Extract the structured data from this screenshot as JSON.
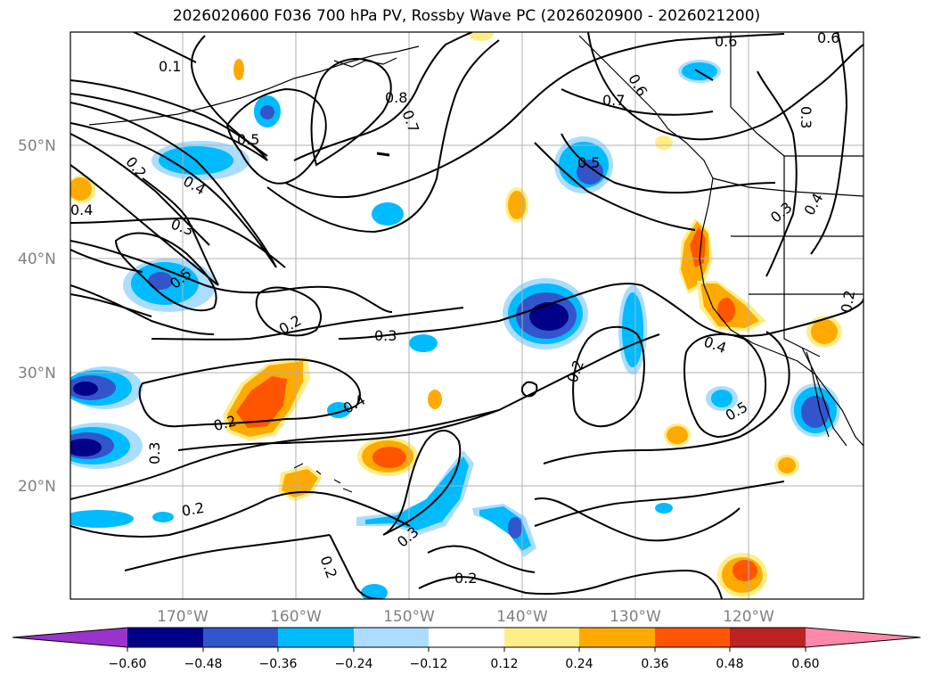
{
  "title": "2026020600 F036 700 hPa PV, Rossby Wave PC (2026020900 - 2026021200)",
  "lat_labels": [
    "50°N",
    "40°N",
    "30°N",
    "20°N"
  ],
  "lon_labels": [
    "170°W",
    "160°W",
    "150°W",
    "140°W",
    "130°W",
    "120°W"
  ],
  "colorbar": {
    "tick_labels": [
      "−0.60",
      "−0.48",
      "−0.36",
      "−0.24",
      "−0.12",
      "0.12",
      "0.24",
      "0.36",
      "0.48",
      "0.60"
    ],
    "colors": [
      "#9933cc",
      "#000088",
      "#3355cc",
      "#00bbff",
      "#aaddff",
      "#ffffff",
      "#ffee88",
      "#ffaa00",
      "#ff5500",
      "#bb2222",
      "#ff88aa"
    ]
  },
  "contour_labels": [
    {
      "text": "0.1",
      "key": "a"
    },
    {
      "text": "0.8",
      "key": "b"
    },
    {
      "text": "0.7",
      "key": "c"
    },
    {
      "text": "0.6",
      "key": "d"
    },
    {
      "text": "0.6",
      "key": "e"
    },
    {
      "text": "0.6",
      "key": "f"
    },
    {
      "text": "0.7",
      "key": "g"
    },
    {
      "text": "0.3",
      "key": "h"
    },
    {
      "text": "0.5",
      "key": "i"
    },
    {
      "text": "0.2",
      "key": "j"
    },
    {
      "text": "0.4",
      "key": "k"
    },
    {
      "text": "0.4",
      "key": "l"
    },
    {
      "text": "0.3",
      "key": "m"
    },
    {
      "text": "0.5",
      "key": "n"
    },
    {
      "text": "0.5",
      "key": "o"
    },
    {
      "text": "0.3",
      "key": "p"
    },
    {
      "text": "0.4",
      "key": "q"
    },
    {
      "text": "0.2",
      "key": "r"
    },
    {
      "text": "0.3",
      "key": "s"
    },
    {
      "text": "0.2",
      "key": "t"
    },
    {
      "text": "0.4",
      "key": "u"
    },
    {
      "text": "0.4",
      "key": "v"
    },
    {
      "text": "0.2",
      "key": "w"
    },
    {
      "text": "0.5",
      "key": "x"
    },
    {
      "text": "0.2",
      "key": "y"
    },
    {
      "text": "0.3",
      "key": "z"
    },
    {
      "text": "0.2",
      "key": "aa"
    },
    {
      "text": "0.3",
      "key": "ab"
    },
    {
      "text": "0.2",
      "key": "ac"
    },
    {
      "text": "0.2",
      "key": "ad"
    }
  ]
}
